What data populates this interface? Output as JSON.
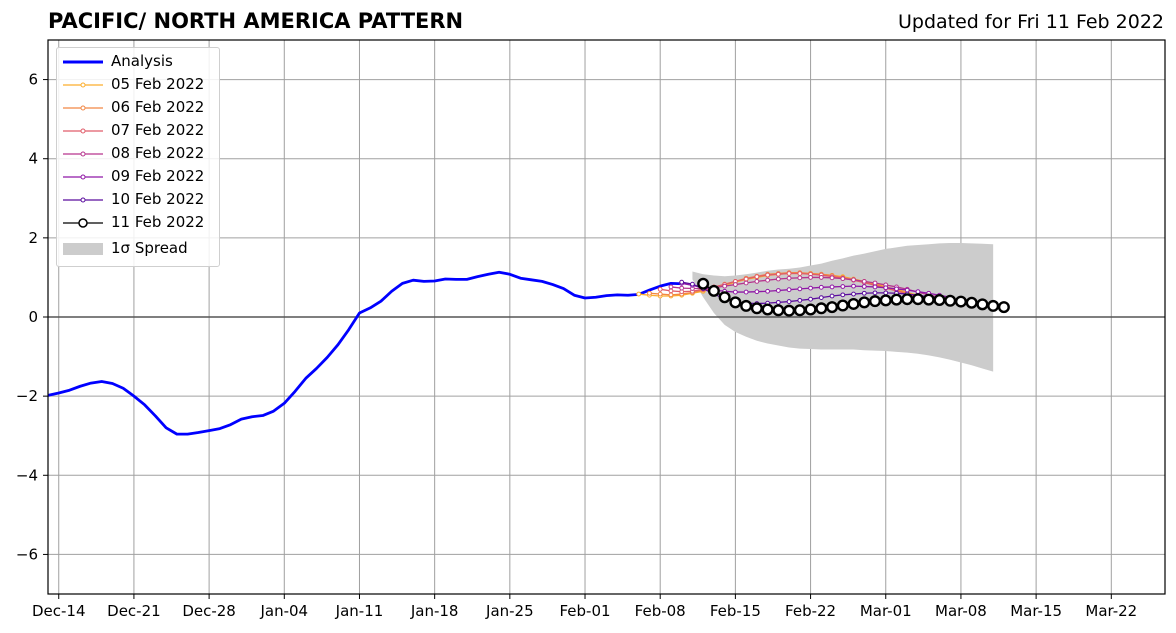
{
  "title": "PACIFIC/ NORTH AMERICA PATTERN",
  "updated": "Updated for Fri 11 Feb 2022",
  "chart_data": {
    "type": "line",
    "x_axis": {
      "type": "date",
      "range": [
        "2021-12-13",
        "2022-03-27"
      ],
      "ticks": [
        "2021-12-14",
        "2021-12-21",
        "2021-12-28",
        "2022-01-04",
        "2022-01-11",
        "2022-01-18",
        "2022-01-25",
        "2022-02-01",
        "2022-02-08",
        "2022-02-15",
        "2022-02-22",
        "2022-03-01",
        "2022-03-08",
        "2022-03-15",
        "2022-03-22"
      ],
      "tick_labels": [
        "Dec-14",
        "Dec-21",
        "Dec-28",
        "Jan-04",
        "Jan-11",
        "Jan-18",
        "Jan-25",
        "Feb-01",
        "Feb-08",
        "Feb-15",
        "Feb-22",
        "Mar-01",
        "Mar-08",
        "Mar-15",
        "Mar-22"
      ]
    },
    "y_axis": {
      "range": [
        -7,
        7
      ],
      "ticks": [
        -6,
        -4,
        -2,
        0,
        2,
        4,
        6
      ],
      "tick_labels": [
        "−6",
        "−4",
        "−2",
        "0",
        "2",
        "4",
        "6"
      ]
    },
    "grid": true,
    "zero_line": true,
    "legend_position": "top-left",
    "analysis": {
      "name": "Analysis",
      "color": "#0000ff",
      "start": "2021-12-13",
      "values": [
        -1.98,
        -1.92,
        -1.85,
        -1.75,
        -1.67,
        -1.63,
        -1.68,
        -1.8,
        -2.0,
        -2.22,
        -2.5,
        -2.8,
        -2.96,
        -2.96,
        -2.92,
        -2.87,
        -2.82,
        -2.72,
        -2.58,
        -2.52,
        -2.49,
        -2.38,
        -2.18,
        -1.88,
        -1.55,
        -1.3,
        -1.02,
        -0.7,
        -0.32,
        0.1,
        0.23,
        0.4,
        0.65,
        0.85,
        0.93,
        0.9,
        0.91,
        0.96,
        0.95,
        0.95,
        1.02,
        1.08,
        1.13,
        1.08,
        0.98,
        0.94,
        0.9,
        0.82,
        0.72,
        0.55,
        0.48,
        0.5,
        0.54,
        0.56,
        0.55,
        0.57,
        0.68,
        0.78,
        0.85,
        0.84
      ]
    },
    "spread": {
      "name": "1σ Spread",
      "color": "#cccccc",
      "start": "2022-02-11",
      "upper": [
        1.15,
        1.08,
        1.05,
        1.03,
        1.05,
        1.08,
        1.12,
        1.17,
        1.2,
        1.22,
        1.25,
        1.3,
        1.35,
        1.42,
        1.48,
        1.55,
        1.6,
        1.66,
        1.72,
        1.76,
        1.8,
        1.82,
        1.84,
        1.86,
        1.87,
        1.87,
        1.86,
        1.85,
        1.84
      ],
      "lower": [
        0.95,
        0.5,
        0.1,
        -0.2,
        -0.38,
        -0.5,
        -0.6,
        -0.67,
        -0.72,
        -0.77,
        -0.8,
        -0.81,
        -0.82,
        -0.82,
        -0.82,
        -0.82,
        -0.84,
        -0.85,
        -0.86,
        -0.88,
        -0.9,
        -0.93,
        -0.97,
        -1.02,
        -1.08,
        -1.15,
        -1.22,
        -1.3,
        -1.38
      ]
    },
    "series": [
      {
        "name": "05 Feb 2022",
        "color": "#fcae2c",
        "start": "2022-02-06",
        "values": [
          0.58,
          0.55,
          0.53,
          0.53,
          0.55,
          0.6,
          0.65,
          0.72,
          0.8,
          0.88,
          0.95,
          1.0,
          1.05,
          1.08,
          1.1,
          1.1,
          1.1,
          1.08,
          1.05,
          1.02,
          0.96,
          0.9,
          0.84,
          0.76,
          0.7,
          0.62,
          0.55,
          0.48,
          0.4
        ]
      },
      {
        "name": "06 Feb 2022",
        "color": "#f28744",
        "start": "2022-02-07",
        "values": [
          0.6,
          0.58,
          0.56,
          0.58,
          0.62,
          0.68,
          0.75,
          0.83,
          0.9,
          0.98,
          1.03,
          1.08,
          1.1,
          1.12,
          1.12,
          1.1,
          1.08,
          1.05,
          1.0,
          0.95,
          0.88,
          0.82,
          0.75,
          0.68,
          0.6,
          0.53,
          0.46,
          0.4
        ]
      },
      {
        "name": "07 Feb 2022",
        "color": "#e05c6a",
        "start": "2022-02-08",
        "values": [
          0.7,
          0.66,
          0.64,
          0.65,
          0.7,
          0.76,
          0.82,
          0.9,
          0.96,
          1.02,
          1.06,
          1.08,
          1.1,
          1.1,
          1.08,
          1.06,
          1.02,
          0.98,
          0.93,
          0.87,
          0.8,
          0.73,
          0.66,
          0.58,
          0.51,
          0.45,
          0.4
        ]
      },
      {
        "name": "08 Feb 2022",
        "color": "#b6358e",
        "start": "2022-02-09",
        "values": [
          0.76,
          0.73,
          0.72,
          0.72,
          0.74,
          0.78,
          0.82,
          0.86,
          0.9,
          0.93,
          0.96,
          0.98,
          0.99,
          1.0,
          1.0,
          0.99,
          0.97,
          0.94,
          0.9,
          0.86,
          0.81,
          0.76,
          0.7,
          0.63,
          0.56,
          0.5,
          0.44
        ]
      },
      {
        "name": "09 Feb 2022",
        "color": "#8f17a6",
        "start": "2022-02-10",
        "values": [
          0.85,
          0.8,
          0.74,
          0.68,
          0.65,
          0.63,
          0.63,
          0.64,
          0.65,
          0.67,
          0.69,
          0.71,
          0.73,
          0.75,
          0.76,
          0.77,
          0.78,
          0.77,
          0.76,
          0.74,
          0.71,
          0.68,
          0.64,
          0.6,
          0.55,
          0.5
        ]
      },
      {
        "name": "10 Feb 2022",
        "color": "#5a0c9e",
        "start": "2022-02-10",
        "values": [
          0.88,
          0.83,
          0.72,
          0.58,
          0.46,
          0.38,
          0.35,
          0.34,
          0.35,
          0.37,
          0.39,
          0.42,
          0.45,
          0.49,
          0.53,
          0.56,
          0.58,
          0.6,
          0.61,
          0.61,
          0.6,
          0.58,
          0.55,
          0.51,
          0.47,
          0.42,
          0.38
        ]
      },
      {
        "name": "11 Feb 2022",
        "color": "#000000",
        "start": "2022-02-12",
        "values": [
          0.84,
          0.66,
          0.5,
          0.37,
          0.28,
          0.22,
          0.19,
          0.17,
          0.16,
          0.17,
          0.19,
          0.22,
          0.25,
          0.29,
          0.33,
          0.37,
          0.4,
          0.42,
          0.44,
          0.45,
          0.45,
          0.44,
          0.43,
          0.41,
          0.39,
          0.36,
          0.32,
          0.28,
          0.25
        ]
      }
    ]
  }
}
